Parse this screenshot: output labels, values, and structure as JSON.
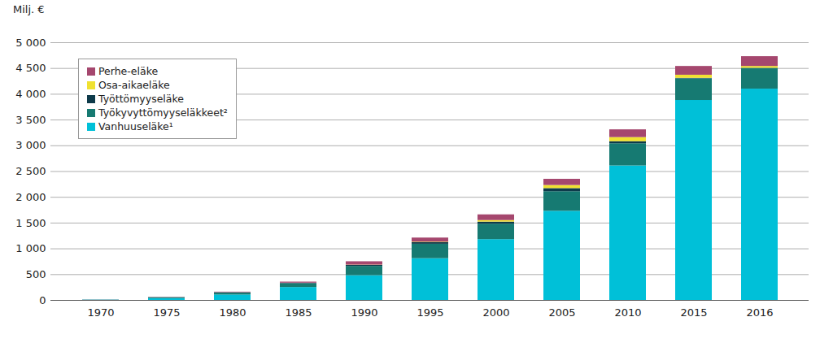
{
  "chart_data": {
    "type": "bar",
    "stacked": true,
    "grid": true,
    "legend": "top-left",
    "y_label": "Milj. €",
    "categories": [
      "1970",
      "1975",
      "1980",
      "1985",
      "1990",
      "1995",
      "2000",
      "2005",
      "2010",
      "2015",
      "2016"
    ],
    "series": [
      {
        "name": "Vanhuuseläke¹",
        "color": "#00c0d8",
        "values": [
          5,
          35,
          105,
          250,
          480,
          810,
          1180,
          1730,
          2610,
          3880,
          4100
        ]
      },
      {
        "name": "Työkyvyttömyyseläkkeet²",
        "color": "#167a72",
        "values": [
          3,
          20,
          40,
          75,
          180,
          280,
          300,
          380,
          430,
          420,
          400
        ]
      },
      {
        "name": "Työttömyyseläke",
        "color": "#0e3a4a",
        "values": [
          0,
          0,
          5,
          10,
          20,
          30,
          40,
          60,
          40,
          10,
          5
        ]
      },
      {
        "name": "Osa-aikaeläke",
        "color": "#f0e130",
        "values": [
          0,
          0,
          0,
          0,
          5,
          10,
          30,
          60,
          80,
          60,
          35
        ]
      },
      {
        "name": "Perhe-eläke",
        "color": "#a5476e",
        "values": [
          2,
          5,
          10,
          20,
          65,
          80,
          110,
          120,
          150,
          170,
          190
        ]
      }
    ],
    "ylim": [
      0,
      5000
    ],
    "yticks": [
      0,
      500,
      {
        "value": 1000,
        "label": "1 000"
      },
      {
        "value": 1500,
        "label": "1 500"
      },
      {
        "value": 2000,
        "label": "2 000"
      },
      {
        "value": 2500,
        "label": "2 500"
      },
      {
        "value": 3000,
        "label": "3 000"
      },
      {
        "value": 3500,
        "label": "3 500"
      },
      {
        "value": 4000,
        "label": "4 000"
      },
      {
        "value": 4500,
        "label": "4 500"
      },
      {
        "value": 5000,
        "label": "5 000"
      }
    ]
  }
}
